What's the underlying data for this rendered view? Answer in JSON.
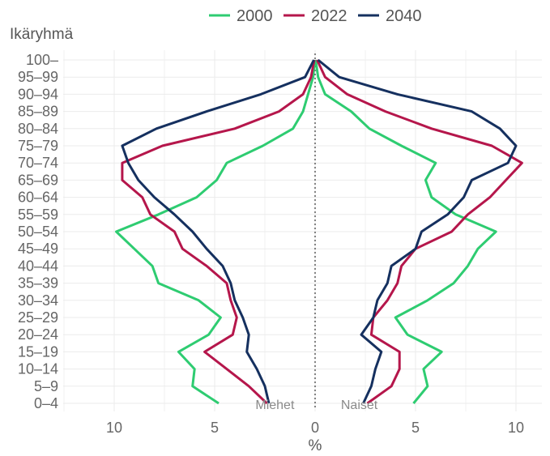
{
  "chart_data": {
    "type": "line",
    "title": "",
    "ylabel": "Ikäryhmä",
    "xlabel": "%",
    "xlim": [
      -12,
      11
    ],
    "x_ticks": [
      -10,
      -5,
      0,
      5,
      10
    ],
    "x_tick_labels": [
      "10",
      "5",
      "0",
      "5",
      "10"
    ],
    "side_labels": {
      "left": "Miehet",
      "right": "Naiset"
    },
    "grid": true,
    "legend_position": "top",
    "categories": [
      "0–4",
      "5–9",
      "10–14",
      "15–19",
      "20–24",
      "25–29",
      "30–34",
      "35–39",
      "40–44",
      "45–49",
      "50–54",
      "55–59",
      "60–64",
      "65–69",
      "70–74",
      "75–79",
      "80–84",
      "85–89",
      "90–94",
      "95–99",
      "100–"
    ],
    "series": [
      {
        "name": "2000",
        "color": "#2ecc71",
        "men": [
          4.8,
          6.1,
          6.0,
          6.8,
          5.3,
          4.7,
          5.8,
          7.8,
          8.1,
          9.0,
          9.9,
          7.8,
          5.9,
          4.9,
          4.4,
          2.6,
          1.1,
          0.6,
          0.35,
          0.1,
          0.02
        ],
        "women": [
          4.9,
          5.6,
          5.4,
          6.3,
          4.6,
          4.0,
          5.6,
          6.9,
          7.6,
          8.1,
          9.0,
          7.0,
          5.8,
          5.5,
          6.0,
          4.3,
          2.7,
          1.8,
          0.5,
          0.15,
          0.03
        ]
      },
      {
        "name": "2022",
        "color": "#b5164b",
        "men": [
          2.4,
          3.3,
          4.4,
          5.5,
          4.1,
          3.9,
          4.2,
          4.4,
          5.4,
          6.6,
          7.0,
          8.2,
          8.6,
          9.6,
          9.6,
          7.6,
          4.0,
          1.8,
          0.6,
          0.2,
          0.04
        ],
        "women": [
          2.6,
          3.8,
          4.2,
          4.2,
          2.8,
          2.9,
          3.6,
          4.1,
          4.3,
          5.0,
          6.8,
          7.6,
          8.7,
          9.5,
          10.3,
          8.8,
          5.8,
          3.5,
          1.6,
          0.5,
          0.1
        ]
      },
      {
        "name": "2040",
        "color": "#15305f",
        "men": [
          2.3,
          2.5,
          2.9,
          3.4,
          3.3,
          3.6,
          4.0,
          4.2,
          4.6,
          5.4,
          6.1,
          7.0,
          8.0,
          8.8,
          9.3,
          9.6,
          7.9,
          5.4,
          2.7,
          0.5,
          0.06
        ],
        "women": [
          2.4,
          2.8,
          3.0,
          3.3,
          2.3,
          2.9,
          3.1,
          3.6,
          3.8,
          5.0,
          5.3,
          6.6,
          7.4,
          7.8,
          9.6,
          10.0,
          9.2,
          7.8,
          4.1,
          1.2,
          0.15
        ]
      }
    ]
  }
}
